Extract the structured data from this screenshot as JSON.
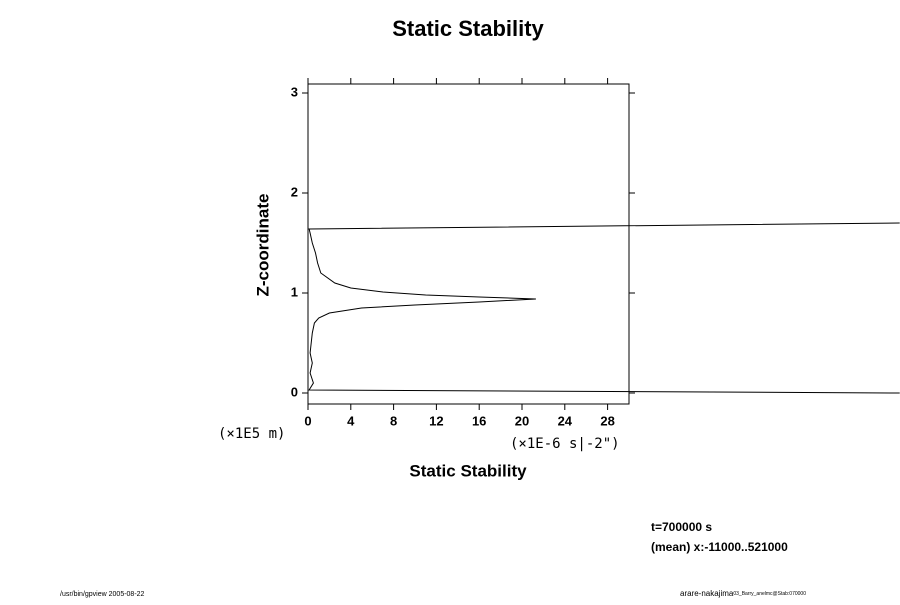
{
  "chart_data": {
    "type": "line",
    "title": "Static Stability",
    "x_label": "Static Stability",
    "y_label": "Z-coordinate",
    "x_unit": "(×1E-6 s|-2\")",
    "y_unit": "(×1E5 m)",
    "annotations": [
      "t=700000 s",
      "(mean) x:-11000..521000"
    ],
    "footer_left": "/usr/bin/gpview 2005-08-22",
    "footer_right": [
      "arare-nakajima",
      "03_Barry_anelmc@Stab:070000"
    ],
    "x": [
      55.3,
      0.1,
      0.5,
      0.2,
      0.4,
      0.2,
      0.3,
      0.4,
      0.6,
      1.0,
      2,
      5,
      10,
      16,
      21.3,
      16,
      11,
      7,
      4,
      2.5,
      1.2,
      0.9,
      0.7,
      0.4,
      0.2,
      0.1,
      55.3
    ],
    "values": [
      0.0,
      0.03,
      0.1,
      0.2,
      0.3,
      0.4,
      0.5,
      0.6,
      0.7,
      0.75,
      0.8,
      0.85,
      0.88,
      0.91,
      0.94,
      0.96,
      0.98,
      1.01,
      1.05,
      1.1,
      1.2,
      1.3,
      1.4,
      1.5,
      1.6,
      1.64,
      1.7
    ],
    "color": "#000000",
    "xlim": [
      0,
      30
    ],
    "xticks": [
      0,
      4,
      8,
      12,
      16,
      20,
      24,
      28
    ],
    "ylim": [
      -0.11,
      3.09
    ],
    "yticks": [
      0,
      1,
      2,
      3
    ]
  }
}
